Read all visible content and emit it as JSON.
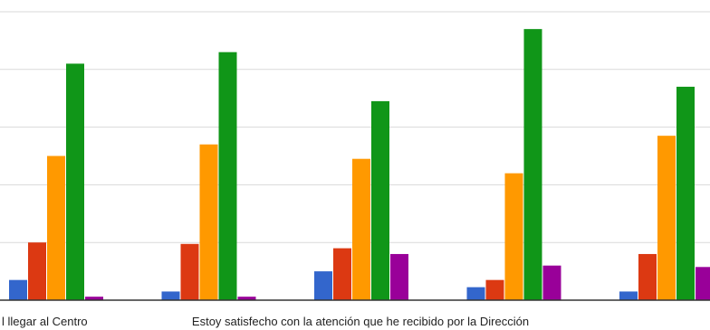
{
  "chart_data": {
    "type": "bar",
    "title": "",
    "xlabel": "",
    "ylabel": "",
    "ylim": [
      0,
      100
    ],
    "grid": true,
    "categories": [
      "l llegar al Centro",
      "",
      "Estoy satisfecho con la atención que he recibido por la Dirección",
      "",
      ""
    ],
    "series": [
      {
        "color": "#3366cc",
        "values": [
          7,
          3,
          10,
          4.5,
          3
        ]
      },
      {
        "color": "#dc3912",
        "values": [
          20,
          19.5,
          18,
          7,
          16
        ]
      },
      {
        "color": "#ff9900",
        "values": [
          50,
          54,
          49,
          44,
          57
        ]
      },
      {
        "color": "#109618",
        "values": [
          82,
          86,
          69,
          94,
          74
        ]
      },
      {
        "color": "#990099",
        "values": [
          1.2,
          1.2,
          16,
          12,
          11.5
        ]
      }
    ]
  }
}
